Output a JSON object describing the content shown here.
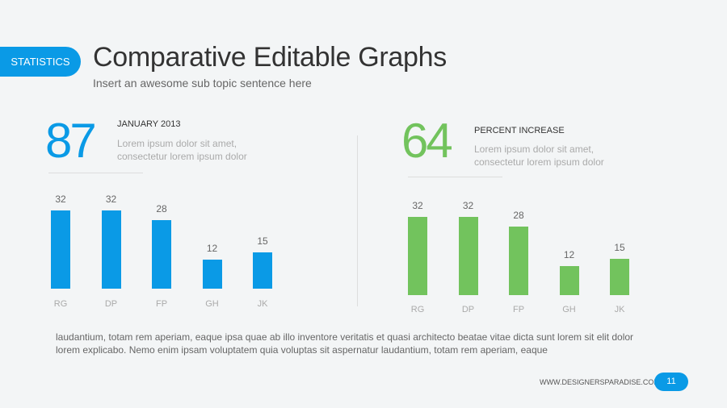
{
  "header": {
    "tag": "STATISTICS",
    "title": "Comparative Editable Graphs",
    "subtitle": "Insert an awesome sub topic sentence here"
  },
  "panels": [
    {
      "number": "87",
      "heading": "JANUARY 2013",
      "description": "Lorem ipsum dolor sit amet, consectetur lorem ipsum dolor",
      "color": "#0a9ae6"
    },
    {
      "number": "64",
      "heading": "PERCENT INCREASE",
      "description": "Lorem ipsum dolor sit amet, consectetur lorem ipsum dolor",
      "color": "#72c35d"
    }
  ],
  "chart_data": [
    {
      "type": "bar",
      "categories": [
        "RG",
        "DP",
        "FP",
        "GH",
        "JK"
      ],
      "values": [
        32,
        32,
        28,
        12,
        15
      ],
      "color": "#0a9ae6",
      "data_labels": true,
      "grid": false,
      "ylim": [
        0,
        32
      ]
    },
    {
      "type": "bar",
      "categories": [
        "RG",
        "DP",
        "FP",
        "GH",
        "JK"
      ],
      "values": [
        32,
        32,
        28,
        12,
        15
      ],
      "color": "#72c35d",
      "data_labels": true,
      "grid": false,
      "ylim": [
        0,
        32
      ]
    }
  ],
  "body_text": "laudantium, totam rem aperiam, eaque ipsa quae ab illo inventore veritatis et quasi architecto beatae vitae dicta sunt lorem sit elit dolor lorem explicabo. Nemo enim ipsam voluptatem quia voluptas sit aspernatur laudantium, totam rem aperiam, eaque",
  "footer": {
    "url": "WWW.DESIGNERSPARADISE.COM",
    "page": "11"
  }
}
